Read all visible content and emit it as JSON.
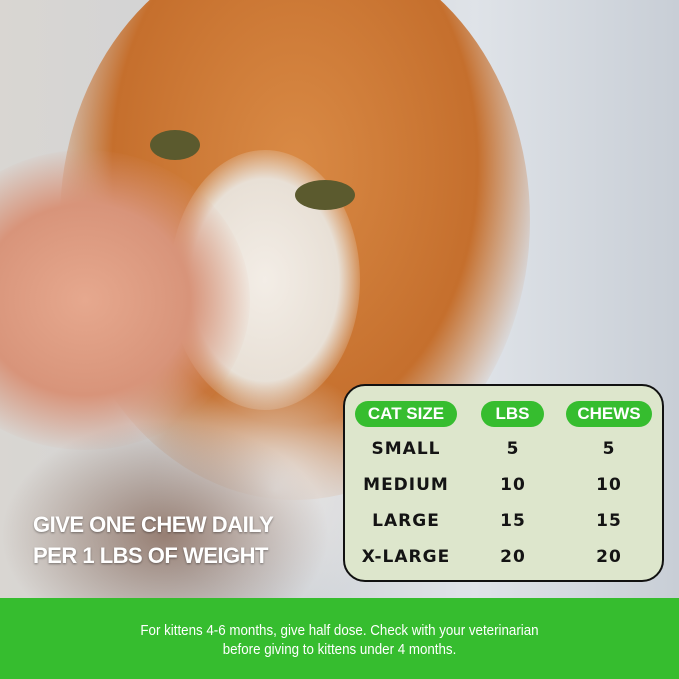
{
  "headline": {
    "line1": "GIVE ONE CHEW DAILY",
    "line2": "PER 1 LBS OF WEIGHT"
  },
  "dosage_table": {
    "headers": [
      "CAT SIZE",
      "LBS",
      "CHEWS"
    ],
    "rows": [
      [
        "SMALL",
        "5",
        "5"
      ],
      [
        "MEDIUM",
        "10",
        "10"
      ],
      [
        "LARGE",
        "15",
        "15"
      ],
      [
        "X-LARGE",
        "20",
        "20"
      ]
    ]
  },
  "footer_note": {
    "line1": "For kittens 4-6 months, give half dose. Check with your veterinarian",
    "line2": "before giving to kittens under 4 months."
  },
  "colors": {
    "accent_green": "#36bd2f",
    "table_bg": "#dde6cc"
  }
}
